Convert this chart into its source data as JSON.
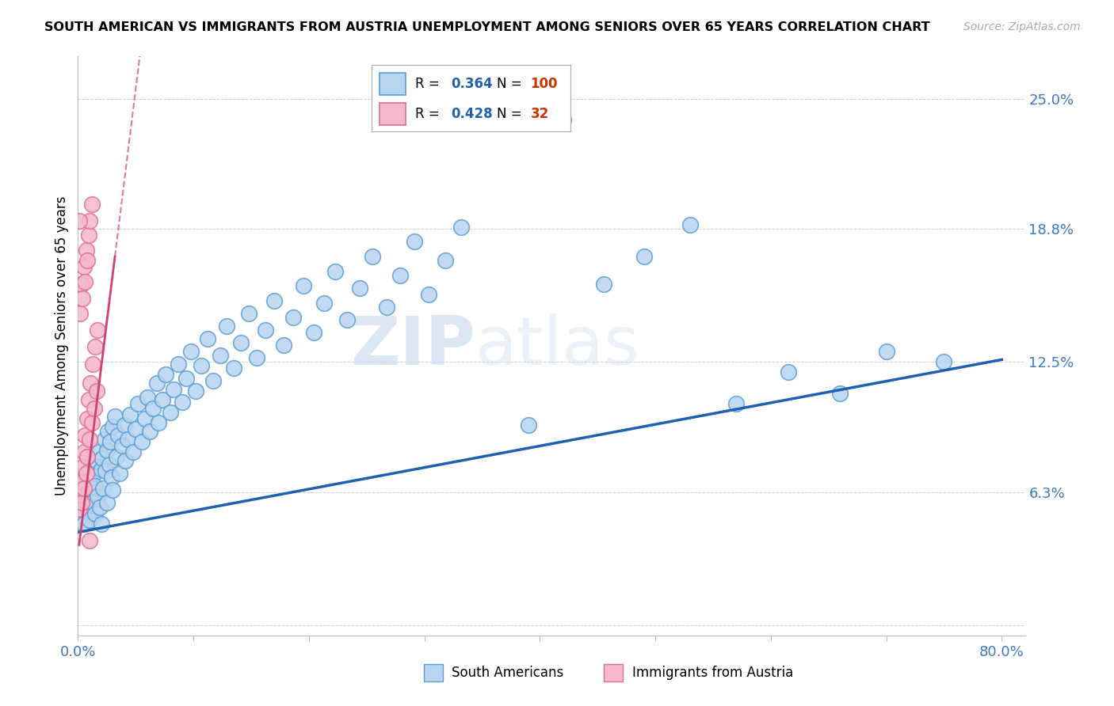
{
  "title": "SOUTH AMERICAN VS IMMIGRANTS FROM AUSTRIA UNEMPLOYMENT AMONG SENIORS OVER 65 YEARS CORRELATION CHART",
  "source": "Source: ZipAtlas.com",
  "ylabel_label": "Unemployment Among Seniors over 65 years",
  "xlim": [
    0.0,
    0.82
  ],
  "ylim": [
    -0.005,
    0.27
  ],
  "ylabel_ticks": [
    0.0,
    0.063,
    0.125,
    0.188,
    0.25
  ],
  "ylabel_tick_labels": [
    "",
    "6.3%",
    "12.5%",
    "18.8%",
    "25.0%"
  ],
  "xtick_positions": [
    0.0,
    0.1,
    0.2,
    0.3,
    0.4,
    0.5,
    0.6,
    0.7,
    0.8
  ],
  "xtick_labels": [
    "0.0%",
    "",
    "",
    "",
    "",
    "",
    "",
    "",
    "80.0%"
  ],
  "blue_color": "#b8d4f0",
  "blue_edge": "#5a9fd4",
  "pink_color": "#f5b8cc",
  "pink_edge": "#e07090",
  "blue_line_color": "#2060b0",
  "pink_line_color": "#d04070",
  "watermark_zip": "ZIP",
  "watermark_atlas": "atlas",
  "blue_line_x0": 0.0,
  "blue_line_y0": 0.044,
  "blue_line_x1": 0.8,
  "blue_line_y1": 0.126,
  "pink_line_x0": 0.001,
  "pink_line_y0": 0.038,
  "pink_line_x1": 0.032,
  "pink_line_y1": 0.175,
  "blue_scatter_x": [
    0.001,
    0.002,
    0.003,
    0.004,
    0.005,
    0.005,
    0.006,
    0.007,
    0.008,
    0.009,
    0.01,
    0.01,
    0.011,
    0.012,
    0.013,
    0.014,
    0.015,
    0.015,
    0.016,
    0.017,
    0.018,
    0.019,
    0.02,
    0.02,
    0.021,
    0.022,
    0.023,
    0.024,
    0.025,
    0.025,
    0.026,
    0.027,
    0.028,
    0.029,
    0.03,
    0.03,
    0.032,
    0.033,
    0.035,
    0.036,
    0.038,
    0.04,
    0.041,
    0.043,
    0.045,
    0.048,
    0.05,
    0.052,
    0.055,
    0.058,
    0.06,
    0.062,
    0.065,
    0.068,
    0.07,
    0.073,
    0.076,
    0.08,
    0.083,
    0.087,
    0.09,
    0.094,
    0.098,
    0.102,
    0.107,
    0.112,
    0.117,
    0.123,
    0.129,
    0.135,
    0.141,
    0.148,
    0.155,
    0.162,
    0.17,
    0.178,
    0.186,
    0.195,
    0.204,
    0.213,
    0.223,
    0.233,
    0.244,
    0.255,
    0.267,
    0.279,
    0.291,
    0.304,
    0.318,
    0.332,
    0.39,
    0.42,
    0.455,
    0.49,
    0.53,
    0.57,
    0.615,
    0.66,
    0.7,
    0.75
  ],
  "blue_scatter_y": [
    0.055,
    0.06,
    0.052,
    0.058,
    0.065,
    0.048,
    0.062,
    0.057,
    0.07,
    0.054,
    0.068,
    0.05,
    0.075,
    0.063,
    0.058,
    0.072,
    0.066,
    0.053,
    0.078,
    0.061,
    0.082,
    0.056,
    0.074,
    0.048,
    0.079,
    0.065,
    0.088,
    0.073,
    0.083,
    0.058,
    0.092,
    0.076,
    0.087,
    0.07,
    0.094,
    0.064,
    0.099,
    0.08,
    0.09,
    0.072,
    0.085,
    0.095,
    0.078,
    0.088,
    0.1,
    0.082,
    0.093,
    0.105,
    0.087,
    0.098,
    0.108,
    0.092,
    0.103,
    0.115,
    0.096,
    0.107,
    0.119,
    0.101,
    0.112,
    0.124,
    0.106,
    0.117,
    0.13,
    0.111,
    0.123,
    0.136,
    0.116,
    0.128,
    0.142,
    0.122,
    0.134,
    0.148,
    0.127,
    0.14,
    0.154,
    0.133,
    0.146,
    0.161,
    0.139,
    0.153,
    0.168,
    0.145,
    0.16,
    0.175,
    0.151,
    0.166,
    0.182,
    0.157,
    0.173,
    0.189,
    0.095,
    0.24,
    0.162,
    0.175,
    0.19,
    0.105,
    0.12,
    0.11,
    0.13,
    0.125
  ],
  "pink_scatter_x": [
    0.001,
    0.002,
    0.003,
    0.003,
    0.004,
    0.005,
    0.005,
    0.006,
    0.007,
    0.008,
    0.008,
    0.009,
    0.01,
    0.011,
    0.012,
    0.013,
    0.014,
    0.015,
    0.016,
    0.017,
    0.002,
    0.003,
    0.004,
    0.005,
    0.006,
    0.007,
    0.008,
    0.009,
    0.01,
    0.012,
    0.001,
    0.01
  ],
  "pink_scatter_y": [
    0.055,
    0.062,
    0.068,
    0.058,
    0.075,
    0.082,
    0.065,
    0.09,
    0.072,
    0.098,
    0.08,
    0.107,
    0.088,
    0.115,
    0.096,
    0.124,
    0.103,
    0.132,
    0.111,
    0.14,
    0.148,
    0.162,
    0.155,
    0.17,
    0.163,
    0.178,
    0.173,
    0.185,
    0.192,
    0.2,
    0.192,
    0.04
  ]
}
